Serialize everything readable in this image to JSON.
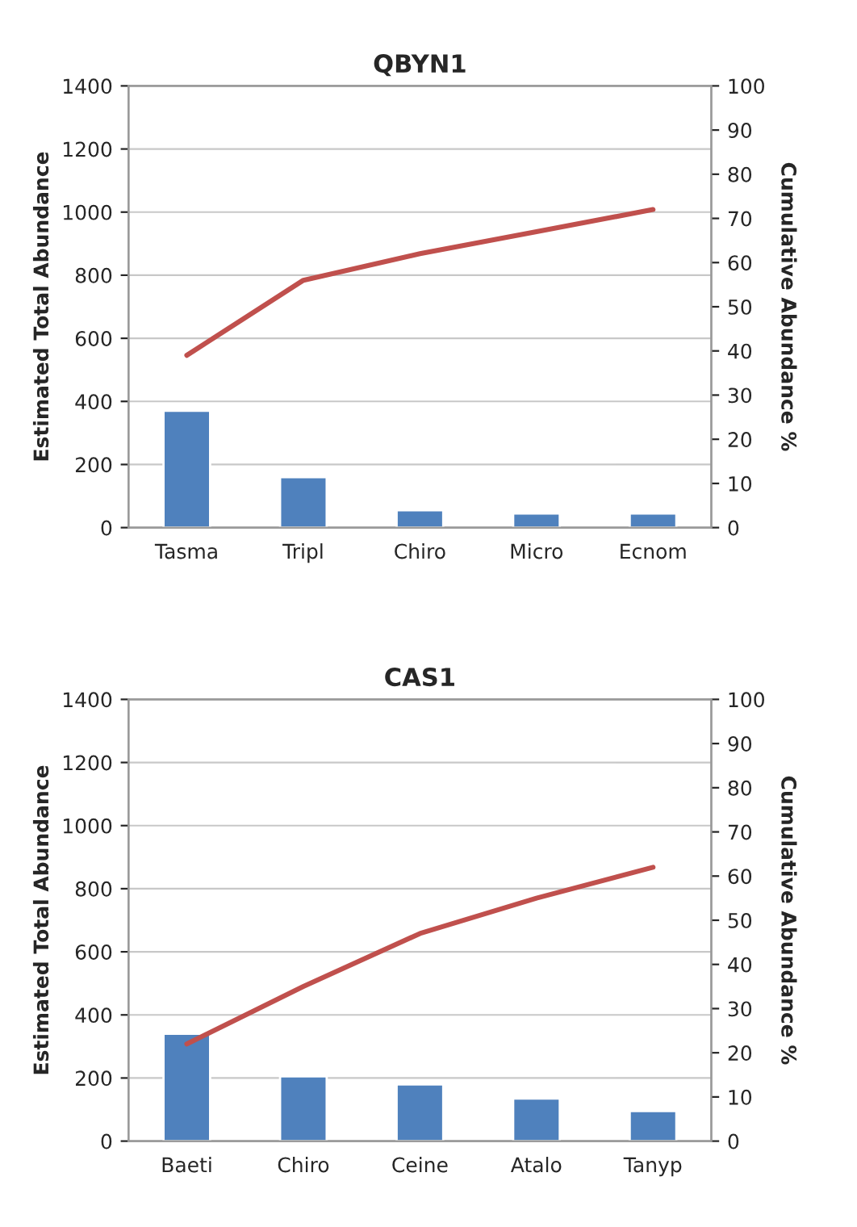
{
  "chart_data": [
    {
      "type": "bar",
      "title": "QBYN1",
      "ylabel": "Estimated Total Abundance",
      "y2label": "Cumulative Abundance %",
      "categories": [
        "Tasma",
        "Tripl",
        "Chiro",
        "Micro",
        "Ecnom"
      ],
      "series": [
        {
          "color": "#4f81bd",
          "values": [
            370,
            160,
            55,
            45,
            45
          ]
        },
        {
          "type": "line",
          "axis": "y2",
          "color": "#c0504d",
          "values": [
            39,
            56,
            62,
            67,
            72
          ]
        }
      ],
      "ylim": [
        0,
        1400
      ],
      "yticks": [
        0,
        200,
        400,
        600,
        800,
        1000,
        1200,
        1400
      ],
      "y2lim": [
        0,
        100
      ],
      "y2ticks": [
        0,
        10,
        20,
        30,
        40,
        50,
        60,
        70,
        80,
        90,
        100
      ],
      "grid": "y",
      "marker": "none",
      "line_style": "solid"
    },
    {
      "type": "bar",
      "title": "CAS1",
      "ylabel": "Estimated Total Abundance",
      "y2label": "Cumulative Abundance %",
      "categories": [
        "Baeti",
        "Chiro",
        "Ceine",
        "Atalo",
        "Tanyp"
      ],
      "series": [
        {
          "color": "#4f81bd",
          "values": [
            340,
            205,
            180,
            135,
            95
          ]
        },
        {
          "type": "line",
          "axis": "y2",
          "color": "#c0504d",
          "values": [
            22,
            35,
            47,
            55,
            62
          ]
        }
      ],
      "ylim": [
        0,
        1400
      ],
      "yticks": [
        0,
        200,
        400,
        600,
        800,
        1000,
        1200,
        1400
      ],
      "y2lim": [
        0,
        100
      ],
      "y2ticks": [
        0,
        10,
        20,
        30,
        40,
        50,
        60,
        70,
        80,
        90,
        100
      ],
      "grid": "y",
      "marker": "none",
      "line_style": "solid"
    }
  ]
}
